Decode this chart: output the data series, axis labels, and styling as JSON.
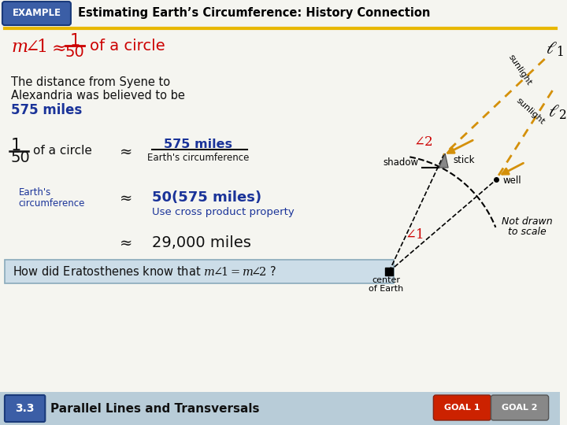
{
  "title": "Estimating Earth’s Circumference: History Connection",
  "example_label": "EXAMPLE",
  "example_bg": "#3b5ea6",
  "title_color": "#000000",
  "header_line_color": "#e8b800",
  "bg_color": "#f5f5f0",
  "red_color": "#cc0000",
  "blue_color": "#1a3399",
  "dark_color": "#111111",
  "orange_color": "#d4900a",
  "footer_text": "Parallel Lines and Transversals",
  "footer_section": "3.3",
  "goal1_color": "#cc2200",
  "goal2_color": "#888888",
  "bottom_bar_bg": "#b8ccd8",
  "question_bg": "#ccdde8",
  "question_border": "#8aaabb"
}
